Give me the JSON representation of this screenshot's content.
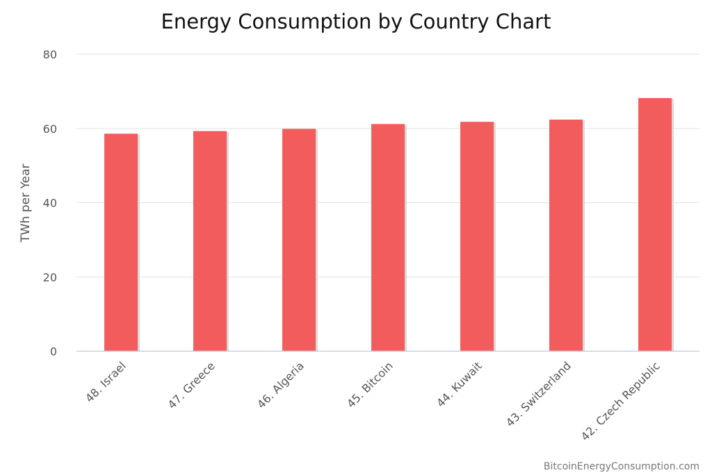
{
  "chart_data": {
    "type": "bar",
    "title": "Energy Consumption by Country Chart",
    "xlabel": "",
    "ylabel": "TWh per Year",
    "categories": [
      "48. Israel",
      "47. Greece",
      "46. Algeria",
      "45. Bitcoin",
      "44. Kuwait",
      "43. Switzerland",
      "42. Czech Republic"
    ],
    "series": [
      {
        "values": [
          58.6,
          59.3,
          59.9,
          61.2,
          61.8,
          62.4,
          68.2
        ],
        "color": "#f25c5c"
      }
    ],
    "ylim": [
      0,
      80
    ],
    "yticks": [
      0,
      20,
      40,
      60,
      80
    ],
    "grid": true,
    "legend": "none"
  },
  "credit": "BitcoinEnergyConsumption.com"
}
